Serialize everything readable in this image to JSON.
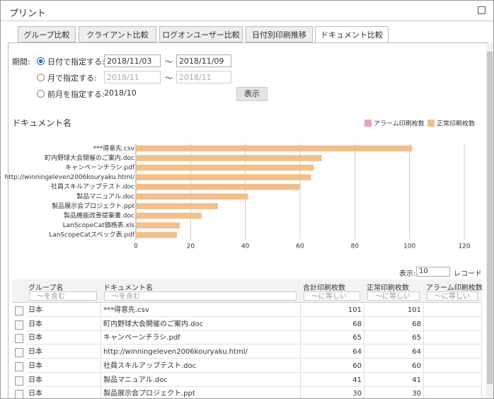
{
  "header": {
    "title": "プリント"
  },
  "tabs": [
    "グループ比較",
    "クライアント比較",
    "ログオンユーザー比較",
    "日付別印刷推移",
    "ドキュメント比較"
  ],
  "form": {
    "period_label": "期間:",
    "by_date": "日付で指定する:",
    "date_from": "2018/11/03",
    "date_sep": "～",
    "date_to": "2018/11/09",
    "by_month": "月で指定する:",
    "month_from": "2018/11",
    "month_sep": "～",
    "month_to": "2018/11",
    "by_prev": "前月を指定する:",
    "prev_month": "2018/10",
    "show_button": "表示"
  },
  "chart_data": {
    "type": "bar",
    "orientation": "horizontal",
    "title": "ドキュメント名",
    "categories": [
      "***得意先.csv",
      "町内野球大会開催のご案内.doc",
      "キャンペーンチラシ.pdf",
      "http://winningeleven2006kouryaku.html/",
      "社員スキルアップテスト.doc",
      "製品マニュアル.doc",
      "製品展示会プロジェクト.ppt",
      "製品機能改善提案書.doc",
      "LanScopeCat価格表.xls",
      "LanScopeCatスペック表.pdf"
    ],
    "series": [
      {
        "name": "アラーム印刷枚数",
        "color": "#eea1a8",
        "values": [
          null,
          null,
          null,
          null,
          null,
          null,
          null,
          null,
          null,
          null
        ]
      },
      {
        "name": "正常印刷枚数",
        "color": "#f2bf8b",
        "values": [
          101,
          68,
          65,
          64,
          60,
          41,
          30,
          24,
          16,
          15
        ]
      }
    ],
    "xlim": [
      0,
      120
    ],
    "xticks": [
      0,
      20,
      40,
      60,
      80,
      100,
      120
    ],
    "grid": true,
    "legend": "top-right"
  },
  "pager": {
    "label": "表示:",
    "size": "10",
    "unit": "レコード"
  },
  "table": {
    "columns": [
      "グループ名",
      "ドキュメント名",
      "合計印刷枚数",
      "正常印刷枚数",
      "アラーム印刷枚数"
    ],
    "filters": [
      "～を含む",
      "～を含む",
      "～に等しい",
      "～に等しい",
      "～に等しい"
    ],
    "rows": [
      [
        "日本",
        "***得意先.csv",
        "101",
        "101"
      ],
      [
        "日本",
        "町内野球大会開催のご案内.doc",
        "68",
        "68"
      ],
      [
        "日本",
        "キャンペーンチラシ.pdf",
        "65",
        "65"
      ],
      [
        "日本",
        "http://winningeleven2006kouryaku.html/",
        "64",
        "64"
      ],
      [
        "日本",
        "社員スキルアップテスト.doc",
        "60",
        "60"
      ],
      [
        "日本",
        "製品マニュアル.doc",
        "41",
        "41"
      ],
      [
        "日本",
        "製品展示会プロジェクト.ppt",
        "30",
        "30"
      ]
    ]
  }
}
